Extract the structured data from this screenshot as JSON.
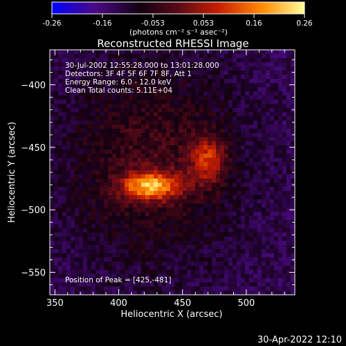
{
  "chart_data": {
    "type": "heatmap",
    "title": "Reconstructed RHESSI Image",
    "xlabel": "Heliocentric X (arcsec)",
    "ylabel": "Heliocentric Y (arcsec)",
    "xlim": [
      346,
      538
    ],
    "ylim": [
      -568,
      -372
    ],
    "x_ticks": [
      350,
      400,
      450,
      500
    ],
    "y_ticks": [
      -400,
      -450,
      -500,
      -550
    ],
    "colorbar": {
      "ticks": [
        "-0.26",
        "-0.16",
        "-0.053",
        "0.053",
        "0.16",
        "0.26"
      ],
      "range": [
        -0.26,
        0.26
      ],
      "unit_text": "(photons cm⁻² s⁻¹ asec⁻²)",
      "colors": [
        "#0000ff",
        "#4b0a86",
        "#120010",
        "#5a0a18",
        "#c81e00",
        "#ff8a00",
        "#ffff9a"
      ]
    },
    "annotations": [
      "30-Jul-2002 12:55:28.000 to 13:01:28.000",
      "Detectors: 3F 4F 5F 6F 7F 8F, Att 1",
      "Energy Range: 6.0 - 12.0 keV",
      "Clean     Total counts: 5.11E+04"
    ],
    "peak_label": "Position of Peak = [425,-481]",
    "peak_position": [
      425,
      -481
    ],
    "sources": [
      {
        "x": 425,
        "y": -481,
        "sx": 16,
        "sy": 8,
        "amp": 0.26
      },
      {
        "x": 470,
        "y": -460,
        "sx": 10,
        "sy": 14,
        "amp": 0.17
      },
      {
        "x": 425,
        "y": -460,
        "sx": 48,
        "sy": 58,
        "amp": 0.1
      }
    ]
  },
  "timestamp": "30-Apr-2022 12:10"
}
